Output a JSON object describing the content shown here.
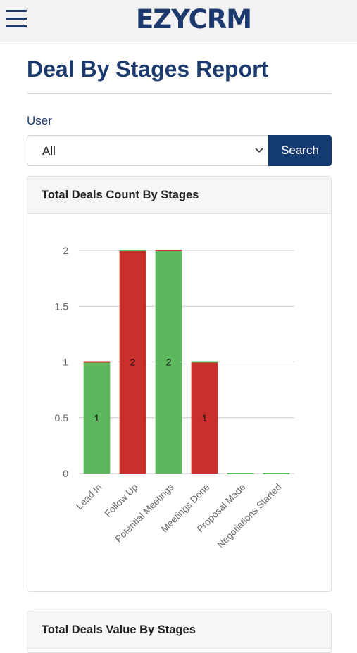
{
  "app": {
    "logo_text": "EZYCRM"
  },
  "page": {
    "title": "Deal By Stages Report"
  },
  "filter": {
    "user_label": "User",
    "user_selected": "All",
    "search_label": "Search"
  },
  "cards": {
    "count_title": "Total Deals Count By Stages",
    "value_title": "Total Deals Value By Stages"
  },
  "colors": {
    "won": "#5cb85c",
    "lost": "#c9302c",
    "brand": "#1c3a6e"
  },
  "chart_data": {
    "type": "bar",
    "stacked": true,
    "title": "Total Deals Count By Stages",
    "categories": [
      "Lead In",
      "Follow Up",
      "Potential Meetings",
      "Meetings Done",
      "Proposal Made",
      "Negotiations Started"
    ],
    "series": [
      {
        "color": "#5cb85c",
        "values": [
          1,
          0,
          2,
          0,
          0,
          0
        ]
      },
      {
        "color": "#c9302c",
        "values": [
          0,
          2,
          0,
          1,
          0,
          0
        ]
      }
    ],
    "data_labels": [
      "1",
      "2",
      "2",
      "1",
      "",
      ""
    ],
    "yticks": [
      "0",
      "0.5",
      "1",
      "1.5",
      "2"
    ],
    "ylim": [
      0,
      2
    ],
    "grid": true
  }
}
